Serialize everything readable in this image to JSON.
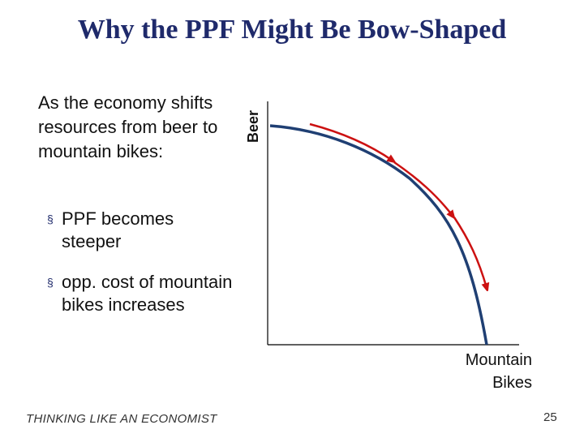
{
  "slide": {
    "title": "Why the PPF Might Be Bow-Shaped",
    "intro": "As the economy shifts resources from beer to mountain bikes:",
    "bullets": [
      "PPF becomes steeper",
      "opp. cost of mountain bikes increases"
    ],
    "bullet_marker": "§",
    "footer": "THINKING LIKE AN ECONOMIST",
    "page_number": "25"
  },
  "diagram": {
    "y_axis_label": "Beer",
    "x_axis_label_line1": "Mountain",
    "x_axis_label_line2": "Bikes",
    "colors": {
      "ppf_curve": "#1f3f73",
      "arrow": "#cc1111",
      "axis": "#000000",
      "title": "#1f2a6b"
    },
    "arrow_count": 3
  }
}
